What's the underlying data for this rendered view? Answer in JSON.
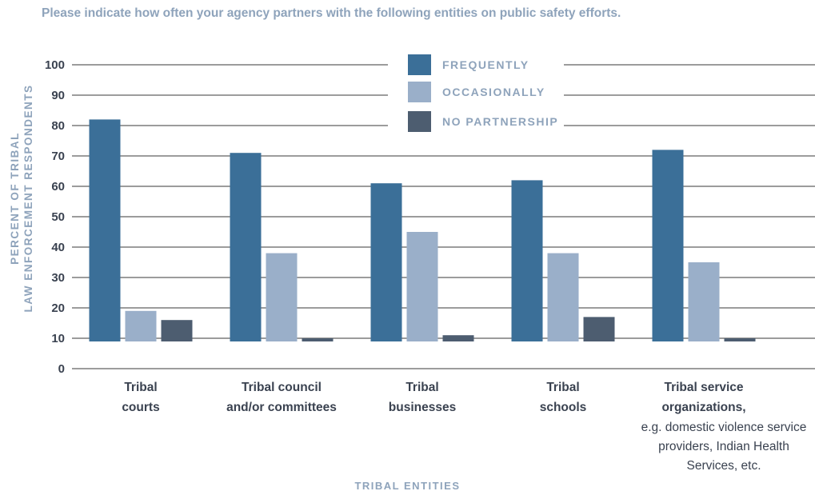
{
  "chart_data": {
    "type": "bar",
    "title": "Please indicate how often your agency partners with the following entities on public safety efforts.",
    "ylabel_lines": [
      "PERCENT OF TRIBAL",
      "LAW ENFORCEMENT RESPONDENTS"
    ],
    "xlabel": "TRIBAL ENTITIES",
    "ylim": [
      0,
      100
    ],
    "yticks": [
      0,
      10,
      20,
      30,
      40,
      50,
      60,
      70,
      80,
      90,
      100
    ],
    "grid": true,
    "legend_placement": "top-center",
    "categories": [
      {
        "bold": [
          "Tribal",
          "courts"
        ],
        "normal": []
      },
      {
        "bold": [
          "Tribal council",
          "and/or committees"
        ],
        "normal": []
      },
      {
        "bold": [
          "Tribal",
          "businesses"
        ],
        "normal": []
      },
      {
        "bold": [
          "Tribal",
          "schools"
        ],
        "normal": []
      },
      {
        "bold": [
          "Tribal service",
          "organizations,"
        ],
        "normal": [
          "e.g. domestic violence service",
          "providers, Indian Health",
          "Services, etc."
        ]
      }
    ],
    "series": [
      {
        "name": "FREQUENTLY",
        "color": "#3b6f98",
        "values": [
          82,
          71,
          61,
          62,
          72
        ]
      },
      {
        "name": "OCCASIONALLY",
        "color": "#9aafc9",
        "values": [
          19,
          38,
          45,
          38,
          35
        ]
      },
      {
        "name": "NO PARTNERSHIP",
        "color": "#4d5d70",
        "values": [
          16,
          10,
          11,
          17,
          10
        ]
      }
    ]
  }
}
